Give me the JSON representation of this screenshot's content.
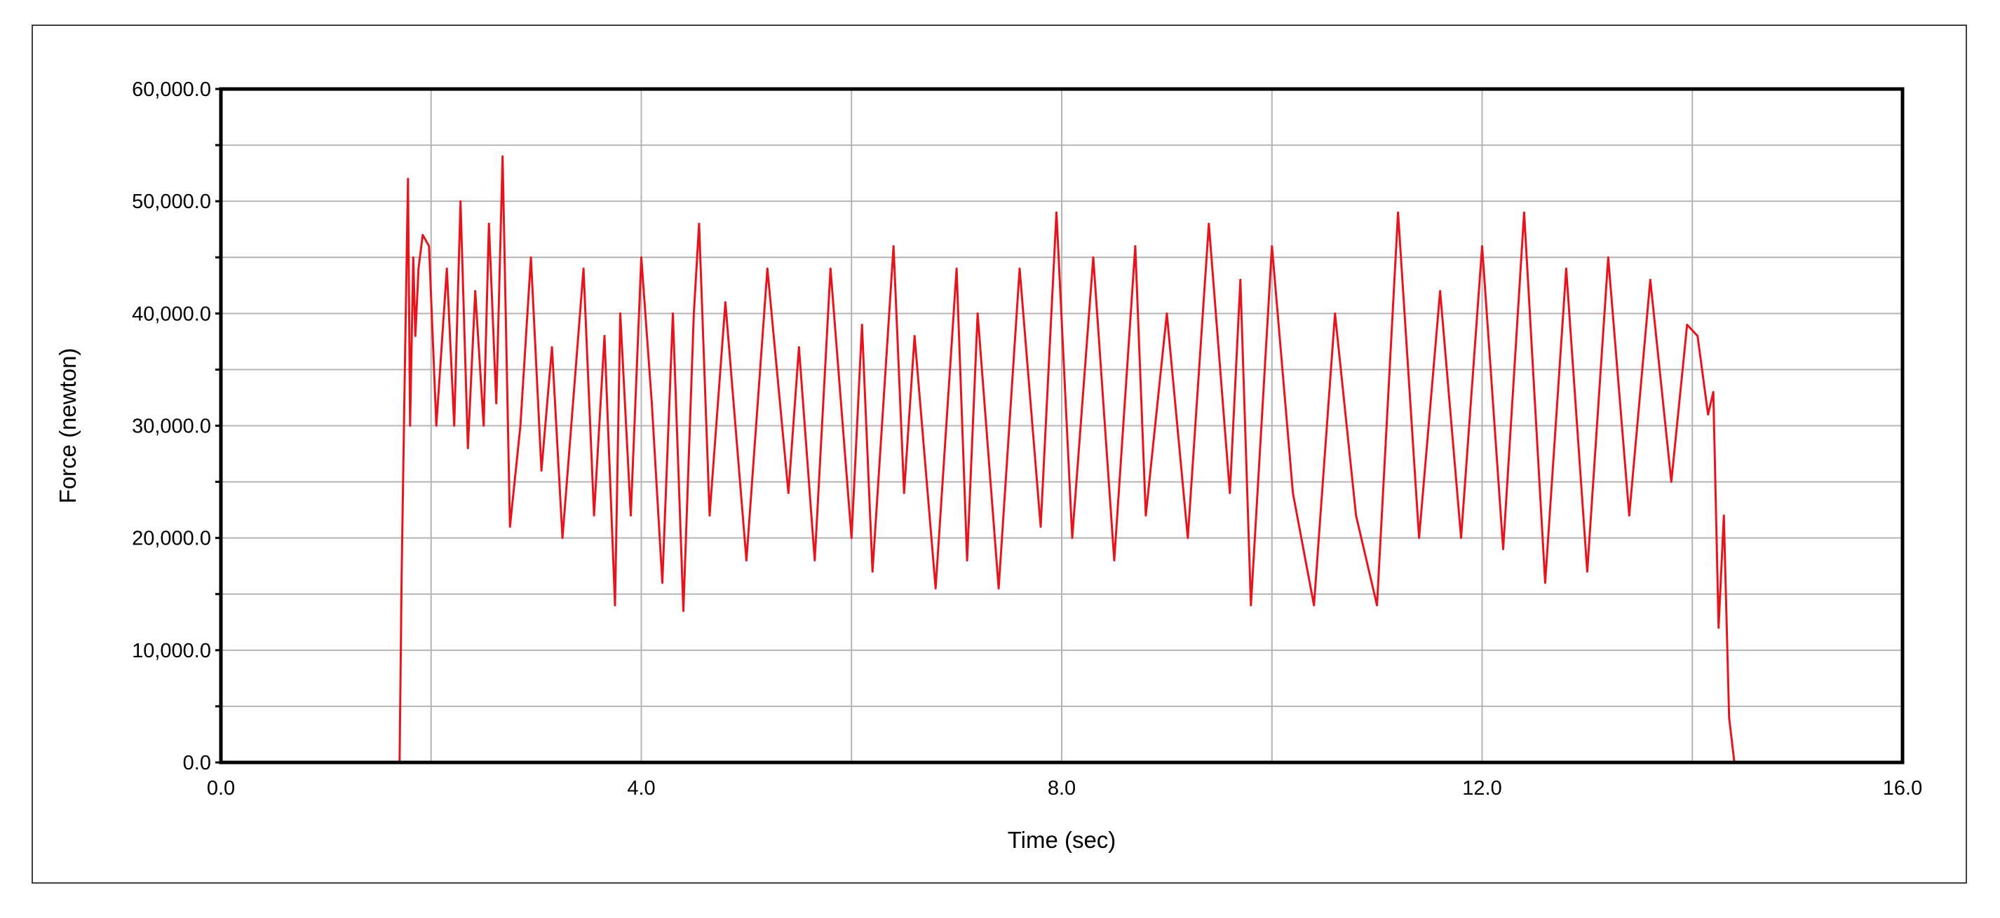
{
  "chart_data": {
    "type": "line",
    "title": "",
    "xlabel": "Time (sec)",
    "ylabel": "Force (newton)",
    "xlim": [
      0,
      16
    ],
    "ylim": [
      0,
      60000
    ],
    "x_ticks": [
      0,
      4,
      8,
      12,
      16
    ],
    "x_tick_labels": [
      "0.0",
      "4.0",
      "8.0",
      "12.0",
      "16.0"
    ],
    "y_ticks": [
      0,
      10000,
      20000,
      30000,
      40000,
      50000,
      60000
    ],
    "y_tick_labels": [
      "0.0",
      "10,000.0",
      "20,000.0",
      "30,000.0",
      "40,000.0",
      "50,000.0",
      "60,000.0"
    ],
    "y_minor_step": 5000,
    "x_grid_step": 2,
    "grid": true,
    "legend": "none",
    "series": [
      {
        "color": "#e8141b",
        "x": [
          0,
          1.7,
          1.72,
          1.75,
          1.78,
          1.8,
          1.83,
          1.85,
          1.88,
          1.92,
          1.98,
          2.05,
          2.15,
          2.22,
          2.28,
          2.35,
          2.42,
          2.5,
          2.55,
          2.62,
          2.68,
          2.75,
          2.85,
          2.95,
          3.05,
          3.15,
          3.25,
          3.35,
          3.45,
          3.55,
          3.65,
          3.75,
          3.8,
          3.9,
          4.0,
          4.1,
          4.2,
          4.3,
          4.4,
          4.5,
          4.55,
          4.65,
          4.8,
          5.0,
          5.2,
          5.4,
          5.5,
          5.65,
          5.8,
          6.0,
          6.1,
          6.2,
          6.4,
          6.5,
          6.6,
          6.8,
          7.0,
          7.1,
          7.2,
          7.4,
          7.6,
          7.8,
          7.95,
          8.1,
          8.3,
          8.5,
          8.7,
          8.8,
          9.0,
          9.2,
          9.4,
          9.6,
          9.7,
          9.8,
          10.0,
          10.2,
          10.4,
          10.6,
          10.8,
          11.0,
          11.2,
          11.4,
          11.6,
          11.8,
          12.0,
          12.2,
          12.4,
          12.6,
          12.8,
          13.0,
          13.2,
          13.4,
          13.6,
          13.8,
          13.95,
          14.05,
          14.15,
          14.2,
          14.25,
          14.3,
          14.35,
          14.4,
          16.0
        ],
        "values": [
          0,
          0,
          17000,
          35000,
          52000,
          30000,
          45000,
          38000,
          44000,
          47000,
          46000,
          30000,
          44000,
          30000,
          50000,
          28000,
          42000,
          30000,
          48000,
          32000,
          54000,
          21000,
          30000,
          45000,
          26000,
          37000,
          20000,
          32000,
          44000,
          22000,
          38000,
          14000,
          40000,
          22000,
          45000,
          32000,
          16000,
          40000,
          13500,
          40000,
          48000,
          22000,
          41000,
          18000,
          44000,
          24000,
          37000,
          18000,
          44000,
          20000,
          39000,
          17000,
          46000,
          24000,
          38000,
          15500,
          44000,
          18000,
          40000,
          15500,
          44000,
          21000,
          49000,
          20000,
          45000,
          18000,
          46000,
          22000,
          40000,
          20000,
          48000,
          24000,
          43000,
          14000,
          46000,
          24000,
          14000,
          40000,
          22000,
          14000,
          49000,
          20000,
          42000,
          20000,
          46000,
          19000,
          49000,
          16000,
          44000,
          17000,
          45000,
          22000,
          43000,
          25000,
          39000,
          38000,
          31000,
          33000,
          12000,
          22000,
          4000,
          0,
          0
        ]
      }
    ]
  }
}
